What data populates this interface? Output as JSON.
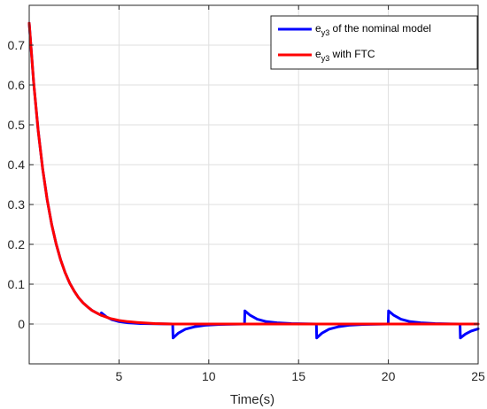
{
  "chart_data": {
    "type": "line",
    "title": "",
    "xlabel": "Time(s)",
    "ylabel": "",
    "xlim": [
      0,
      25
    ],
    "ylim": [
      -0.1,
      0.8
    ],
    "grid": true,
    "legend_position": "top-right",
    "x_ticks": [
      {
        "value": 5,
        "label": "5"
      },
      {
        "value": 10,
        "label": "10"
      },
      {
        "value": 15,
        "label": "15"
      },
      {
        "value": 20,
        "label": "20"
      },
      {
        "value": 25,
        "label": "25"
      }
    ],
    "y_ticks": [
      {
        "value": 0,
        "label": "0"
      },
      {
        "value": 0.1,
        "label": "0.1"
      },
      {
        "value": 0.2,
        "label": "0.2"
      },
      {
        "value": 0.3,
        "label": "0.3"
      },
      {
        "value": 0.4,
        "label": "0.4"
      },
      {
        "value": 0.5,
        "label": "0.5"
      },
      {
        "value": 0.6,
        "label": "0.6"
      },
      {
        "value": 0.7,
        "label": "0.7"
      }
    ],
    "series": [
      {
        "legend_main": "e",
        "legend_sub": "y3",
        "legend_rest": " of the nominal model",
        "color": "#0000ff",
        "points": [
          [
            0,
            0.755
          ],
          [
            0.25,
            0.605
          ],
          [
            0.5,
            0.485
          ],
          [
            0.75,
            0.389
          ],
          [
            1,
            0.312
          ],
          [
            1.25,
            0.25
          ],
          [
            1.5,
            0.201
          ],
          [
            1.75,
            0.161
          ],
          [
            2,
            0.129
          ],
          [
            2.25,
            0.103
          ],
          [
            2.5,
            0.083
          ],
          [
            2.75,
            0.066
          ],
          [
            3,
            0.053
          ],
          [
            3.25,
            0.043
          ],
          [
            3.5,
            0.034
          ],
          [
            3.75,
            0.028
          ],
          [
            4,
            0.022
          ],
          [
            4.02,
            0.028
          ],
          [
            4.3,
            0.018
          ],
          [
            4.6,
            0.011
          ],
          [
            5,
            0.006
          ],
          [
            5.5,
            0.003
          ],
          [
            6.2,
            0.001
          ],
          [
            7.99,
            0
          ],
          [
            8.01,
            -0.035
          ],
          [
            8.3,
            -0.023
          ],
          [
            8.7,
            -0.013
          ],
          [
            9.2,
            -0.007
          ],
          [
            9.8,
            -0.003
          ],
          [
            10.6,
            -0.001
          ],
          [
            11.99,
            0
          ],
          [
            12.01,
            0.033
          ],
          [
            12.3,
            0.022
          ],
          [
            12.7,
            0.012
          ],
          [
            13.2,
            0.006
          ],
          [
            13.8,
            0.003
          ],
          [
            14.6,
            0.001
          ],
          [
            15.99,
            0
          ],
          [
            16.01,
            -0.035
          ],
          [
            16.3,
            -0.023
          ],
          [
            16.7,
            -0.013
          ],
          [
            17.2,
            -0.007
          ],
          [
            17.8,
            -0.003
          ],
          [
            18.6,
            -0.001
          ],
          [
            19.99,
            0
          ],
          [
            20.01,
            0.033
          ],
          [
            20.3,
            0.022
          ],
          [
            20.7,
            0.012
          ],
          [
            21.2,
            0.006
          ],
          [
            21.8,
            0.003
          ],
          [
            22.6,
            0.001
          ],
          [
            23.99,
            0
          ],
          [
            24.01,
            -0.035
          ],
          [
            24.3,
            -0.025
          ],
          [
            24.6,
            -0.018
          ],
          [
            25,
            -0.012
          ]
        ]
      },
      {
        "legend_main": "e",
        "legend_sub": "y3",
        "legend_rest": " with FTC",
        "color": "#ff0000",
        "points": [
          [
            0,
            0.755
          ],
          [
            0.25,
            0.605
          ],
          [
            0.5,
            0.485
          ],
          [
            0.75,
            0.389
          ],
          [
            1,
            0.312
          ],
          [
            1.25,
            0.25
          ],
          [
            1.5,
            0.201
          ],
          [
            1.75,
            0.161
          ],
          [
            2,
            0.129
          ],
          [
            2.25,
            0.103
          ],
          [
            2.5,
            0.083
          ],
          [
            2.75,
            0.066
          ],
          [
            3,
            0.053
          ],
          [
            3.25,
            0.043
          ],
          [
            3.5,
            0.034
          ],
          [
            3.75,
            0.028
          ],
          [
            4,
            0.022
          ],
          [
            4.5,
            0.014
          ],
          [
            5,
            0.009
          ],
          [
            5.5,
            0.006
          ],
          [
            6,
            0.004
          ],
          [
            7,
            0.001
          ],
          [
            8,
            0
          ],
          [
            25,
            0
          ]
        ]
      }
    ]
  }
}
